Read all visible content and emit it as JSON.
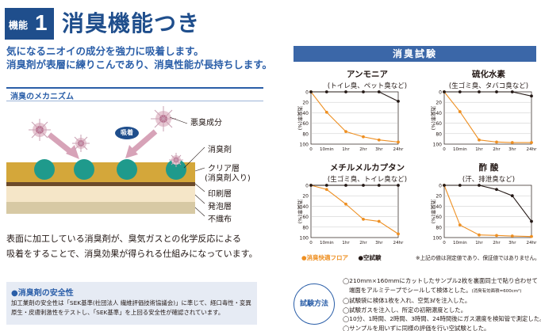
{
  "header": {
    "badge_label": "機能",
    "badge_number": "1",
    "title": "消臭機能つき",
    "subtitle_1": "気になるニオイの成分を強力に吸着します。",
    "subtitle_2": "消臭剤が表層に練りこんであり、消臭性能が長持ちします。"
  },
  "mechanism": {
    "heading": "消臭のメカニズム",
    "label_odor": "悪臭成分",
    "label_adsorb": "吸着",
    "label_deodorant": "消臭剤",
    "label_clear_1": "クリア層",
    "label_clear_2": "(消臭剤入り)",
    "label_print": "印刷層",
    "label_foam": "発泡層",
    "label_nonwoven": "不織布",
    "desc_1": "表面に加工している消臭剤が、臭気ガスとの化学反応による",
    "desc_2": "吸着をすることで、消臭効果が得られる仕組みになっています。"
  },
  "safety": {
    "heading": "●消臭剤の安全性",
    "body": "加工業剤の安全性は「SEK基準(社団法人 繊維評価技術協議会)」に準じて、経口毒性・変異原生・皮膚刺激性をテストし、「SEK基準」を上回る安全性が確認されています。"
  },
  "test": {
    "heading": "消臭試験",
    "legend_product": "●消臭快適フロア",
    "legend_blank": "●空試験",
    "note": "※上記の値は測定値であり、保証値ではありません。",
    "ylabel": "消臭率(%)"
  },
  "chart_data": [
    {
      "type": "line",
      "title": "アンモニア",
      "subtitle": "(トイレ臭、ペット臭など)",
      "categories": [
        "0",
        "10min",
        "1hr",
        "2hr",
        "3hr",
        "24hr"
      ],
      "ylabel": "消臭率(%)",
      "ylim": [
        0,
        100
      ],
      "yticks": [
        "0",
        "20",
        "40",
        "60",
        "80",
        "100"
      ],
      "series": [
        {
          "name": "消臭快適フロア",
          "color": "#ee8f21",
          "values": [
            0,
            39,
            76,
            86,
            92,
            96
          ]
        },
        {
          "name": "空試験",
          "color": "#231815",
          "values": [
            0,
            0,
            0,
            0,
            0,
            18
          ]
        }
      ]
    },
    {
      "type": "line",
      "title": "硫化水素",
      "subtitle": "(生ゴミ臭、タバコ臭など)",
      "categories": [
        "0",
        "10min",
        "1hr",
        "2hr",
        "3hr",
        "24hr"
      ],
      "ylabel": "消臭率(%)",
      "ylim": [
        0,
        100
      ],
      "yticks": [
        "0",
        "20",
        "40",
        "60",
        "80",
        "100"
      ],
      "series": [
        {
          "name": "消臭快適フロア",
          "color": "#ee8f21",
          "values": [
            0,
            38,
            92,
            96,
            97,
            97
          ]
        },
        {
          "name": "空試験",
          "color": "#231815",
          "values": [
            0,
            0,
            0,
            0,
            0,
            8
          ]
        }
      ]
    },
    {
      "type": "line",
      "title": "メチルメルカプタン",
      "subtitle": "(生ゴミ臭、トイレ臭など)",
      "categories": [
        "0",
        "10min",
        "1hr",
        "2hr",
        "3hr",
        "24hr"
      ],
      "ylabel": "消臭率(%)",
      "ylim": [
        0,
        100
      ],
      "yticks": [
        "0",
        "20",
        "40",
        "60",
        "80",
        "100"
      ],
      "series": [
        {
          "name": "消臭快適フロア",
          "color": "#ee8f21",
          "values": [
            0,
            8,
            36,
            65,
            69,
            93
          ]
        },
        {
          "name": "空試験",
          "color": "#231815",
          "values": [
            0,
            0,
            0,
            0,
            0,
            0
          ]
        }
      ]
    },
    {
      "type": "line",
      "title": "酢 酸",
      "subtitle": "(汗、排泄臭など)",
      "categories": [
        "0",
        "10min",
        "1hr",
        "2hr",
        "3hr",
        "24hr"
      ],
      "ylabel": "消臭率(%)",
      "ylim": [
        0,
        100
      ],
      "yticks": [
        "0",
        "20",
        "40",
        "60",
        "80",
        "100"
      ],
      "series": [
        {
          "name": "消臭快適フロア",
          "color": "#ee8f21",
          "values": [
            0,
            76,
            95,
            96,
            97,
            98
          ]
        },
        {
          "name": "空試験",
          "color": "#231815",
          "values": [
            0,
            0,
            0,
            8,
            20,
            69
          ]
        }
      ]
    }
  ],
  "method": {
    "badge": "試験方法",
    "line_1": "◯210mm×160mmにカットしたサンプル2枚を裏面同士で貼り合わせて",
    "line_2": "端面をアルミテープでシールして検体とした。",
    "line_2_small": "(消臭有効面積=600cm²)",
    "line_3": "◯試験袋に検体1枚を入れ、空気3ℓを注入した。",
    "line_4": "◯試験ガスを注入し、所定の初期濃度とした。",
    "line_5": "◯10分、1時間、2時間、3時間、24時間後にガス濃度を検知管で測定した。",
    "line_6": "◯サンプルを用いずに同様の評価を行い空試験とした。"
  }
}
